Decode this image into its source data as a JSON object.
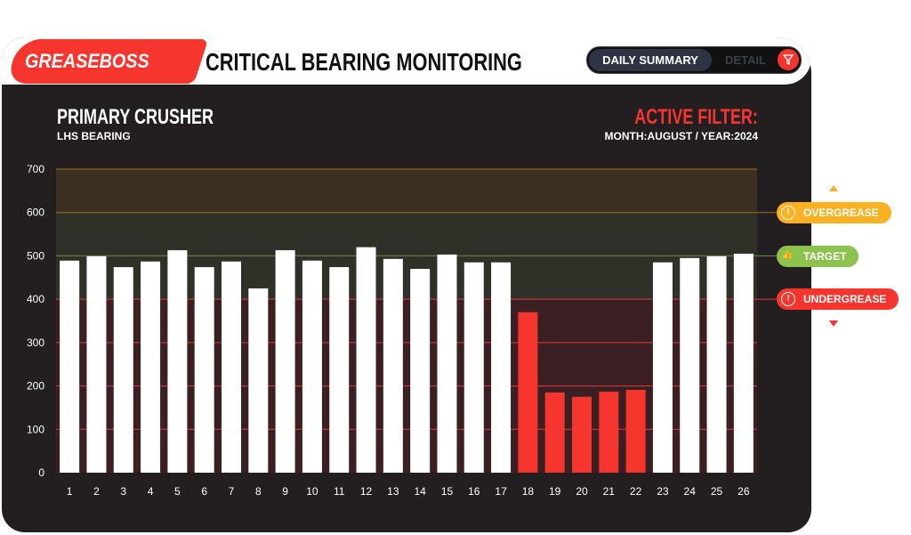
{
  "header": {
    "logo": "GREASEBOSS",
    "title": "CRITICAL BEARING MONITORING",
    "tabs": [
      {
        "label": "DAILY SUMMARY",
        "active": true
      },
      {
        "label": "DETAIL",
        "active": false
      }
    ],
    "filter_icon": "filter-icon"
  },
  "section": {
    "title": "PRIMARY CRUSHER",
    "subtitle": "LHS BEARING"
  },
  "active_filter": {
    "title": "ACTIVE FILTER:",
    "value": "MONTH:AUGUST / YEAR:2024"
  },
  "legend": {
    "overgrease": "OVERGREASE",
    "target": "TARGET",
    "undergrease": "UNDERGREASE"
  },
  "colors": {
    "accent": "#f6352f",
    "overgrease": "#fbb122",
    "target": "#8dc24f",
    "undergrease": "#f6352f",
    "bar_normal": "#ffffff",
    "bar_under": "#f6352f"
  },
  "chart_data": {
    "type": "bar",
    "categories": [
      "1",
      "2",
      "3",
      "4",
      "5",
      "6",
      "7",
      "8",
      "9",
      "10",
      "11",
      "12",
      "13",
      "14",
      "15",
      "16",
      "17",
      "18",
      "19",
      "20",
      "21",
      "22",
      "23",
      "24",
      "25",
      "26"
    ],
    "values": [
      489,
      499,
      474,
      487,
      513,
      474,
      487,
      425,
      513,
      489,
      474,
      520,
      493,
      470,
      503,
      485,
      485,
      370,
      185,
      175,
      187,
      191,
      485,
      495,
      499,
      505
    ],
    "ylim": [
      0,
      700
    ],
    "yticks": [
      0,
      100,
      200,
      300,
      400,
      500,
      600,
      700
    ],
    "thresholds": {
      "undergrease": 400,
      "target": 500,
      "overgrease": 600
    },
    "grid": true
  }
}
